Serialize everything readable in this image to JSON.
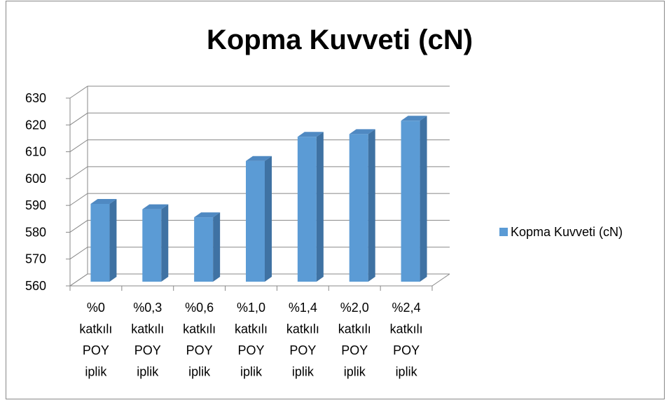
{
  "chart_data": {
    "type": "bar3d",
    "title": "Kopma Kuvveti (cN)",
    "categories": [
      "%0 katkılı POY iplik",
      "%0,3 katkılı POY iplik",
      "%0,6 katkılı POY iplik",
      "%1,0 katkılı POY iplik",
      "%1,4 katkılı POY iplik",
      "%2,0 katkılı POY iplik",
      "%2,4 katkılı POY iplik"
    ],
    "series": [
      {
        "name": "Kopma Kuvveti (cN)",
        "color": "#5b9bd5",
        "values": [
          589,
          587,
          584,
          605,
          614,
          615,
          620
        ]
      }
    ],
    "ylim": [
      560,
      630
    ],
    "yticks": [
      560,
      570,
      580,
      590,
      600,
      610,
      620,
      630
    ],
    "grid": true,
    "legend": "right"
  }
}
